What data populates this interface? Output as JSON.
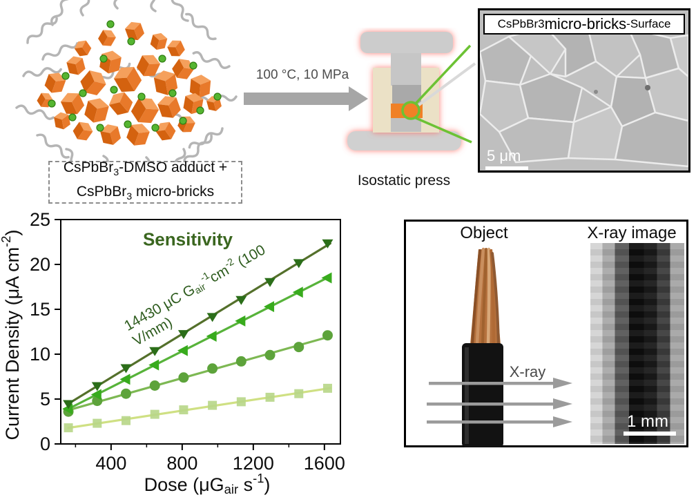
{
  "cluster": {
    "label_line1_p1": "CsPbBr",
    "label_line1_sub": "3",
    "label_line1_p2": "-DMSO adduct +",
    "label_line2_p1": "CsPbBr",
    "label_line2_sub": "3",
    "label_line2_p2": " micro-bricks"
  },
  "process": {
    "conditions": "100 °C, 10 MPa",
    "press_label": "Isostatic press"
  },
  "sem_panel": {
    "title_p1": "CsPbBr",
    "title_sub": "3",
    "title_p2": " micro-bricks",
    "title_p3": "-Surface",
    "scale_bar": "5 μm"
  },
  "xray_panel": {
    "object_label": "Object",
    "image_label": "X-ray image",
    "beam_label": "X-ray",
    "scale_bar": "1 mm"
  },
  "colors": {
    "brick_orange": "#e8792a",
    "ligand_gray": "#b5b5b5",
    "dot_green": "#55b531",
    "glow_red": "#ff6b5e",
    "sensitivity_green": "#35621c"
  },
  "chart_data": {
    "type": "scatter",
    "title": "Sensitivity",
    "annotation": {
      "p1": "14430 μC  G",
      "sub": "air",
      "sup1": "-1",
      "p2": "cm",
      "sup2": "-2",
      "p3": " (100 V/mm)"
    },
    "xlabel": {
      "p1": "Dose  (μG",
      "sub": "air",
      "p2": " s",
      "sup": "-1",
      "p3": ")"
    },
    "ylabel": {
      "p1": "Current Density  (μA cm",
      "sup": "-2",
      "p2": ")"
    },
    "xlim": [
      117,
      1690
    ],
    "ylim": [
      0,
      25
    ],
    "x_ticks": [
      400,
      800,
      1200,
      1600
    ],
    "x_minor_ticks": [
      200,
      600,
      1000,
      1400
    ],
    "y_ticks": [
      0,
      5,
      10,
      15,
      20,
      25
    ],
    "grid": false,
    "legend": "none",
    "x": [
      160,
      322,
      484,
      646,
      808,
      970,
      1132,
      1294,
      1456,
      1618
    ],
    "series": [
      {
        "marker": "triangle-down",
        "line_color": "#54702b",
        "marker_color": "#2b6e19",
        "values": [
          4.5,
          6.5,
          8.5,
          10.4,
          12.3,
          14.2,
          16.1,
          18.1,
          20.2,
          22.4
        ]
      },
      {
        "marker": "triangle-left",
        "line_color": "#57b33a",
        "marker_color": "#38ab1d",
        "values": [
          3.9,
          5.5,
          7.2,
          8.8,
          10.4,
          12.0,
          13.7,
          15.3,
          16.9,
          18.5
        ]
      },
      {
        "marker": "circle",
        "line_color": "#7db853",
        "marker_color": "#5da33b",
        "values": [
          3.6,
          4.8,
          5.6,
          6.5,
          7.4,
          8.4,
          9.2,
          9.9,
          10.8,
          12.1
        ]
      },
      {
        "marker": "square",
        "line_color": "#cfe083",
        "marker_color": "#b7d687",
        "values": [
          1.8,
          2.3,
          2.6,
          3.3,
          3.8,
          4.3,
          4.7,
          5.2,
          5.6,
          6.2
        ]
      }
    ]
  }
}
